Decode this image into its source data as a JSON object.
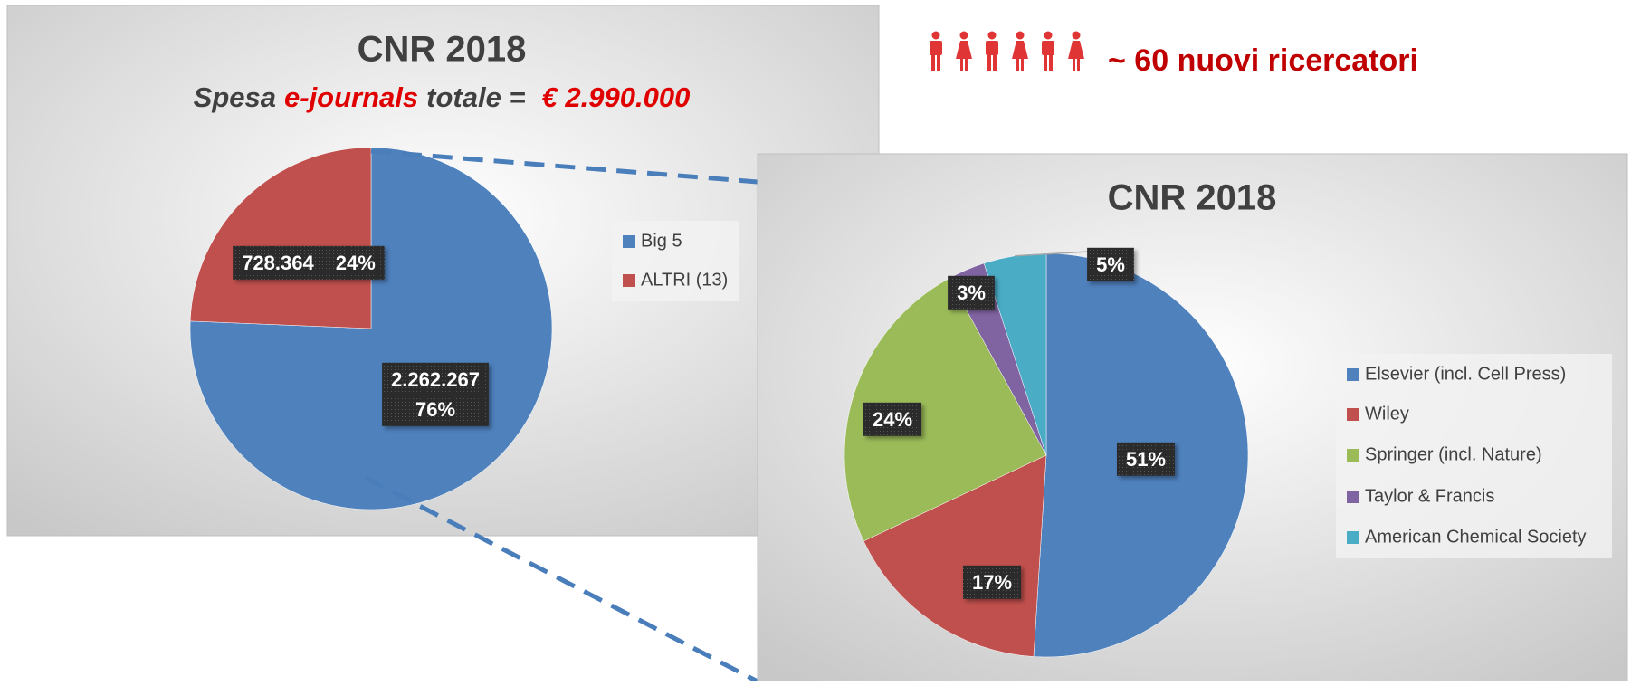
{
  "note": "~ 60 nuovi ricercatori",
  "chart_data": [
    {
      "type": "pie",
      "title": "CNR 2018",
      "subtitle_parts": [
        "Spesa",
        "e-journals",
        "totale =",
        "€ 2.990.000"
      ],
      "categories": [
        "Big 5",
        "ALTRI (13)"
      ],
      "values": [
        2262267,
        728364
      ],
      "value_labels": [
        "2.262.267",
        "728.364"
      ],
      "percent_labels": [
        "76%",
        "24%"
      ],
      "colors": [
        "#4f81bd",
        "#c0504d"
      ]
    },
    {
      "type": "pie",
      "title": "CNR 2018",
      "categories": [
        "Elsevier (incl. Cell Press)",
        "Wiley",
        "Springer (incl. Nature)",
        "Taylor & Francis",
        "American Chemical Society"
      ],
      "values": [
        51,
        17,
        24,
        3,
        5
      ],
      "value_labels": [
        "51%",
        "17%",
        "24%",
        "3%",
        "5%"
      ],
      "colors": [
        "#4f81bd",
        "#c0504d",
        "#9bbb59",
        "#8064a2",
        "#4bacc6"
      ]
    }
  ]
}
